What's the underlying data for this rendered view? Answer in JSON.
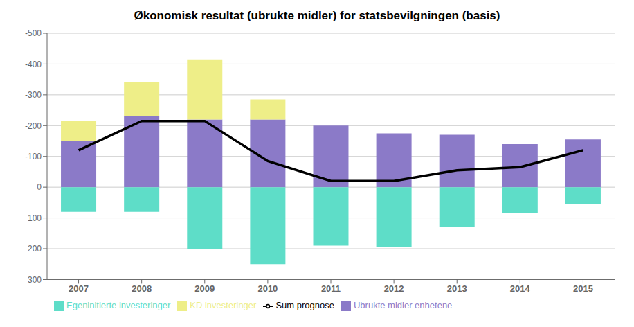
{
  "chart_data": {
    "type": "bar",
    "title": "Økonomisk resultat (ubrukte midler) for statsbevilgningen (basis)",
    "categories": [
      "2007",
      "2008",
      "2009",
      "2010",
      "2011",
      "2012",
      "2013",
      "2014",
      "2015"
    ],
    "series": [
      {
        "name": "Ubrukte midler enhetene",
        "type": "bar",
        "color": "#8B7AC8",
        "values": [
          -150,
          -230,
          -220,
          -220,
          -200,
          -175,
          -170,
          -140,
          -155
        ]
      },
      {
        "name": "Egeninitierte investeringer",
        "type": "bar",
        "color": "#5EDDC8",
        "values": [
          80,
          80,
          200,
          250,
          190,
          195,
          130,
          85,
          55
        ]
      },
      {
        "name": "KD investeringer",
        "type": "bar",
        "color": "#EEEE88",
        "values": [
          -65,
          -110,
          -195,
          -65,
          0,
          0,
          0,
          0,
          0
        ]
      },
      {
        "name": "Sum prognose",
        "type": "line",
        "color": "#000000",
        "values": [
          -120,
          -215,
          -215,
          -85,
          -20,
          -20,
          -55,
          -65,
          -120
        ]
      }
    ],
    "ylim": [
      300,
      -500
    ],
    "yticks": [
      -500,
      -400,
      -300,
      -200,
      -100,
      0,
      100,
      200,
      300
    ],
    "stacked": true,
    "grid": true,
    "legend": "bottom"
  }
}
